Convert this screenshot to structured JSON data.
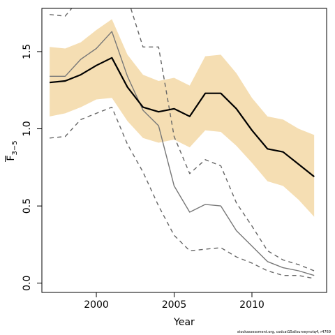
{
  "chart_data": {
    "type": "line",
    "xlabel": "Year",
    "ylabel": "F",
    "ylabel_subscript": "3−5",
    "xlim": [
      1996.5,
      2014.8
    ],
    "ylim": [
      -0.06,
      1.78
    ],
    "x_ticks": [
      2000,
      2005,
      2010
    ],
    "x_tick_labels": [
      "2000",
      "2005",
      "2010"
    ],
    "y_ticks": [
      0.0,
      0.5,
      1.0,
      1.5
    ],
    "y_tick_labels": [
      "0.0",
      "0.5",
      "1.0",
      "1.5"
    ],
    "grid": false,
    "years": [
      1997,
      1998,
      1999,
      2000,
      2001,
      2002,
      2003,
      2004,
      2005,
      2006,
      2007,
      2008,
      2009,
      2010,
      2011,
      2012,
      2013,
      2014
    ],
    "series": [
      {
        "role": "confidence_band",
        "color": "#f5deb3",
        "lower": [
          1.08,
          1.1,
          1.14,
          1.19,
          1.2,
          1.05,
          0.94,
          0.91,
          0.93,
          0.88,
          0.99,
          0.98,
          0.89,
          0.78,
          0.66,
          0.63,
          0.54,
          0.43
        ],
        "upper": [
          1.53,
          1.52,
          1.56,
          1.64,
          1.71,
          1.48,
          1.35,
          1.31,
          1.33,
          1.28,
          1.47,
          1.48,
          1.36,
          1.2,
          1.08,
          1.06,
          1.0,
          0.96
        ]
      },
      {
        "role": "estimate",
        "color": "#000000",
        "style": "solid-thick",
        "values": [
          1.3,
          1.31,
          1.35,
          1.41,
          1.46,
          1.27,
          1.14,
          1.11,
          1.13,
          1.08,
          1.23,
          1.23,
          1.13,
          0.99,
          0.87,
          0.85,
          0.77,
          0.69
        ]
      },
      {
        "role": "alternative-estimate",
        "color": "#777777",
        "style": "solid-thin",
        "values": [
          1.34,
          1.34,
          1.45,
          1.52,
          1.63,
          1.34,
          1.12,
          1.02,
          0.63,
          0.46,
          0.51,
          0.5,
          0.34,
          0.24,
          0.14,
          0.1,
          0.08,
          0.05
        ]
      },
      {
        "role": "alternative-upper",
        "color": "#666666",
        "style": "dashed",
        "values": [
          1.74,
          1.73,
          1.85,
          2.0,
          2.0,
          1.85,
          1.53,
          1.53,
          0.95,
          0.71,
          0.8,
          0.76,
          0.52,
          0.37,
          0.21,
          0.15,
          0.12,
          0.08
        ]
      },
      {
        "role": "alternative-lower",
        "color": "#666666",
        "style": "dashed",
        "values": [
          0.94,
          0.95,
          1.06,
          1.1,
          1.14,
          0.9,
          0.72,
          0.5,
          0.31,
          0.21,
          0.22,
          0.23,
          0.17,
          0.13,
          0.08,
          0.05,
          0.05,
          0.03
        ]
      }
    ],
    "caption": "stockassessment.org, codcat15allsurveynotq4, r4769"
  }
}
